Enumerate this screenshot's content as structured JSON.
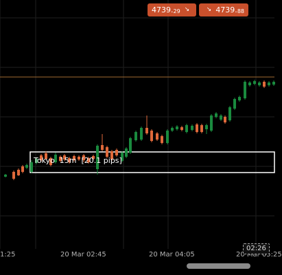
{
  "colors": {
    "up": "#1a8a3e",
    "down": "#e0693a",
    "hline": "#a06a32",
    "grid": "#1f1f1f"
  },
  "price_buttons": {
    "sell": {
      "main": "4739.",
      "small": "29",
      "icon": "arrow-down-right-icon"
    },
    "buy": {
      "main": "4739.",
      "small": "88",
      "icon": "arrow-down-right-icon"
    }
  },
  "session_box": {
    "label": "Tokyo  15m  [20.1 pips]"
  },
  "clock_badge": "02:26",
  "time_axis": [
    "1:25",
    "20 Mar 02:45",
    "20 Mar 04:05",
    "20 Mar 05:25"
  ]
}
